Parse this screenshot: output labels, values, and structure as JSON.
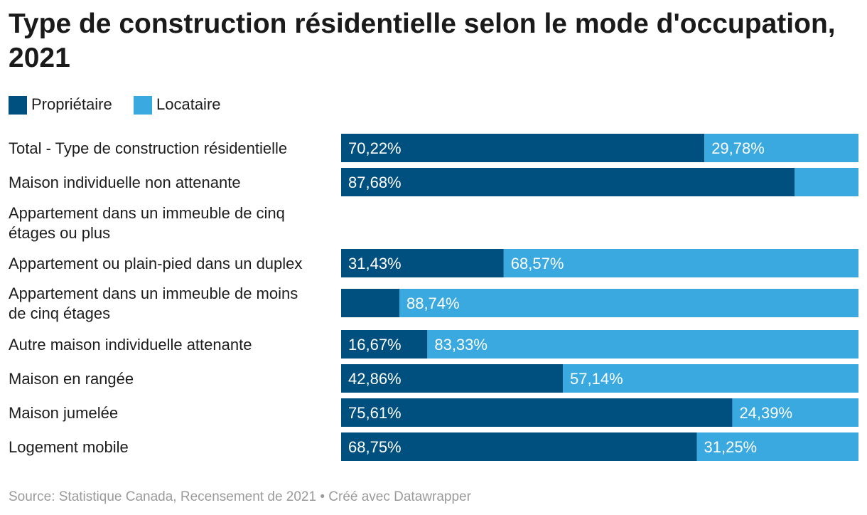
{
  "title": "Type de construction résidentielle selon le mode d'occupation, 2021",
  "source": "Source: Statistique Canada, Recensement de 2021 • Créé avec Datawrapper",
  "colors": {
    "owner": "#00507f",
    "renter": "#3aa9e0"
  },
  "chart_data": {
    "type": "bar",
    "orientation": "horizontal",
    "stacked": true,
    "xlim": [
      0,
      100
    ],
    "legend_placement": "top-left",
    "grid": false,
    "categories": [
      "Total - Type de construction résidentielle",
      "Maison individuelle non attenante",
      "Appartement dans un immeuble de cinq étages ou plus",
      "Appartement ou plain-pied dans un duplex",
      "Appartement dans un immeuble de moins de cinq étages",
      "Autre maison individuelle attenante",
      "Maison en rangée",
      "Maison jumelée",
      "Logement mobile"
    ],
    "series": [
      {
        "name": "Propriétaire",
        "values": [
          70.22,
          87.68,
          null,
          31.43,
          11.26,
          16.67,
          42.86,
          75.61,
          68.75
        ],
        "labels": [
          "70,22%",
          "87,68%",
          "",
          "31,43%",
          "",
          "16,67%",
          "42,86%",
          "75,61%",
          "68,75%"
        ]
      },
      {
        "name": "Locataire",
        "values": [
          29.78,
          12.32,
          null,
          68.57,
          88.74,
          83.33,
          57.14,
          24.39,
          31.25
        ],
        "labels": [
          "29,78%",
          "",
          "",
          "68,57%",
          "88,74%",
          "83,33%",
          "57,14%",
          "24,39%",
          "31,25%"
        ]
      }
    ]
  }
}
